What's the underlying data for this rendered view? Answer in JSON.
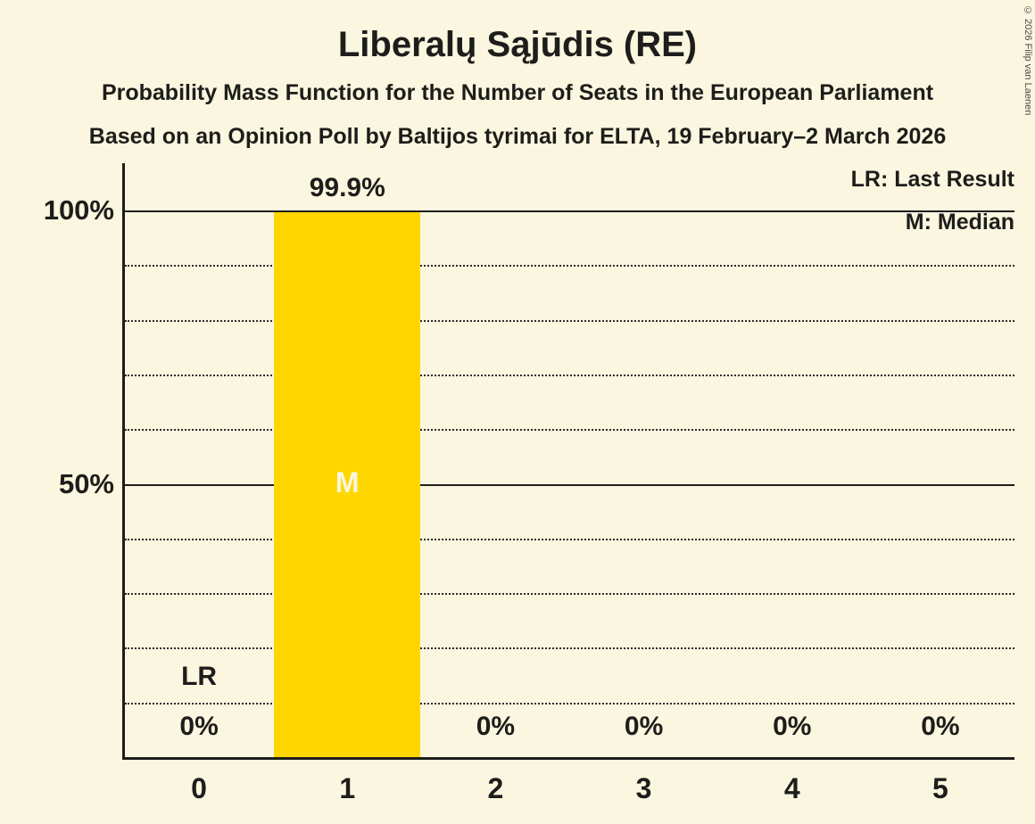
{
  "title": "Liberalų Sąjūdis (RE)",
  "subtitle_line1": "Probability Mass Function for the Number of Seats in the European Parliament",
  "subtitle_line2": "Based on an Opinion Poll by Baltijos tyrimai for ELTA, 19 February–2 March 2026",
  "legend": {
    "last_result": "LR: Last Result",
    "median": "M: Median"
  },
  "copyright": "© 2026 Filip van Laenen",
  "colors": {
    "background": "#FBF6DF",
    "bar": "#FFD700",
    "text": "#1D1D1B",
    "median_label": "#FBF6DF"
  },
  "chart_data": {
    "type": "bar",
    "title": "Liberalų Sąjūdis (RE)",
    "categories": [
      "0",
      "1",
      "2",
      "3",
      "4",
      "5"
    ],
    "values": [
      0,
      99.9,
      0,
      0,
      0,
      0
    ],
    "value_labels": [
      "0%",
      "99.9%",
      "0%",
      "0%",
      "0%",
      "0%"
    ],
    "xlabel": "",
    "ylabel": "",
    "ylim": [
      0,
      100
    ],
    "yticks": [
      {
        "label": "100%",
        "value": 100
      },
      {
        "label": "50%",
        "value": 50
      }
    ],
    "gridlines_solid": [
      100,
      50
    ],
    "gridlines_dotted": [
      90,
      80,
      70,
      60,
      40,
      30,
      20,
      10
    ],
    "legend_position": "top-right",
    "annotations": {
      "last_result": {
        "label": "LR",
        "seat_index": 0
      },
      "median": {
        "label": "M",
        "seat_index": 1
      }
    }
  }
}
